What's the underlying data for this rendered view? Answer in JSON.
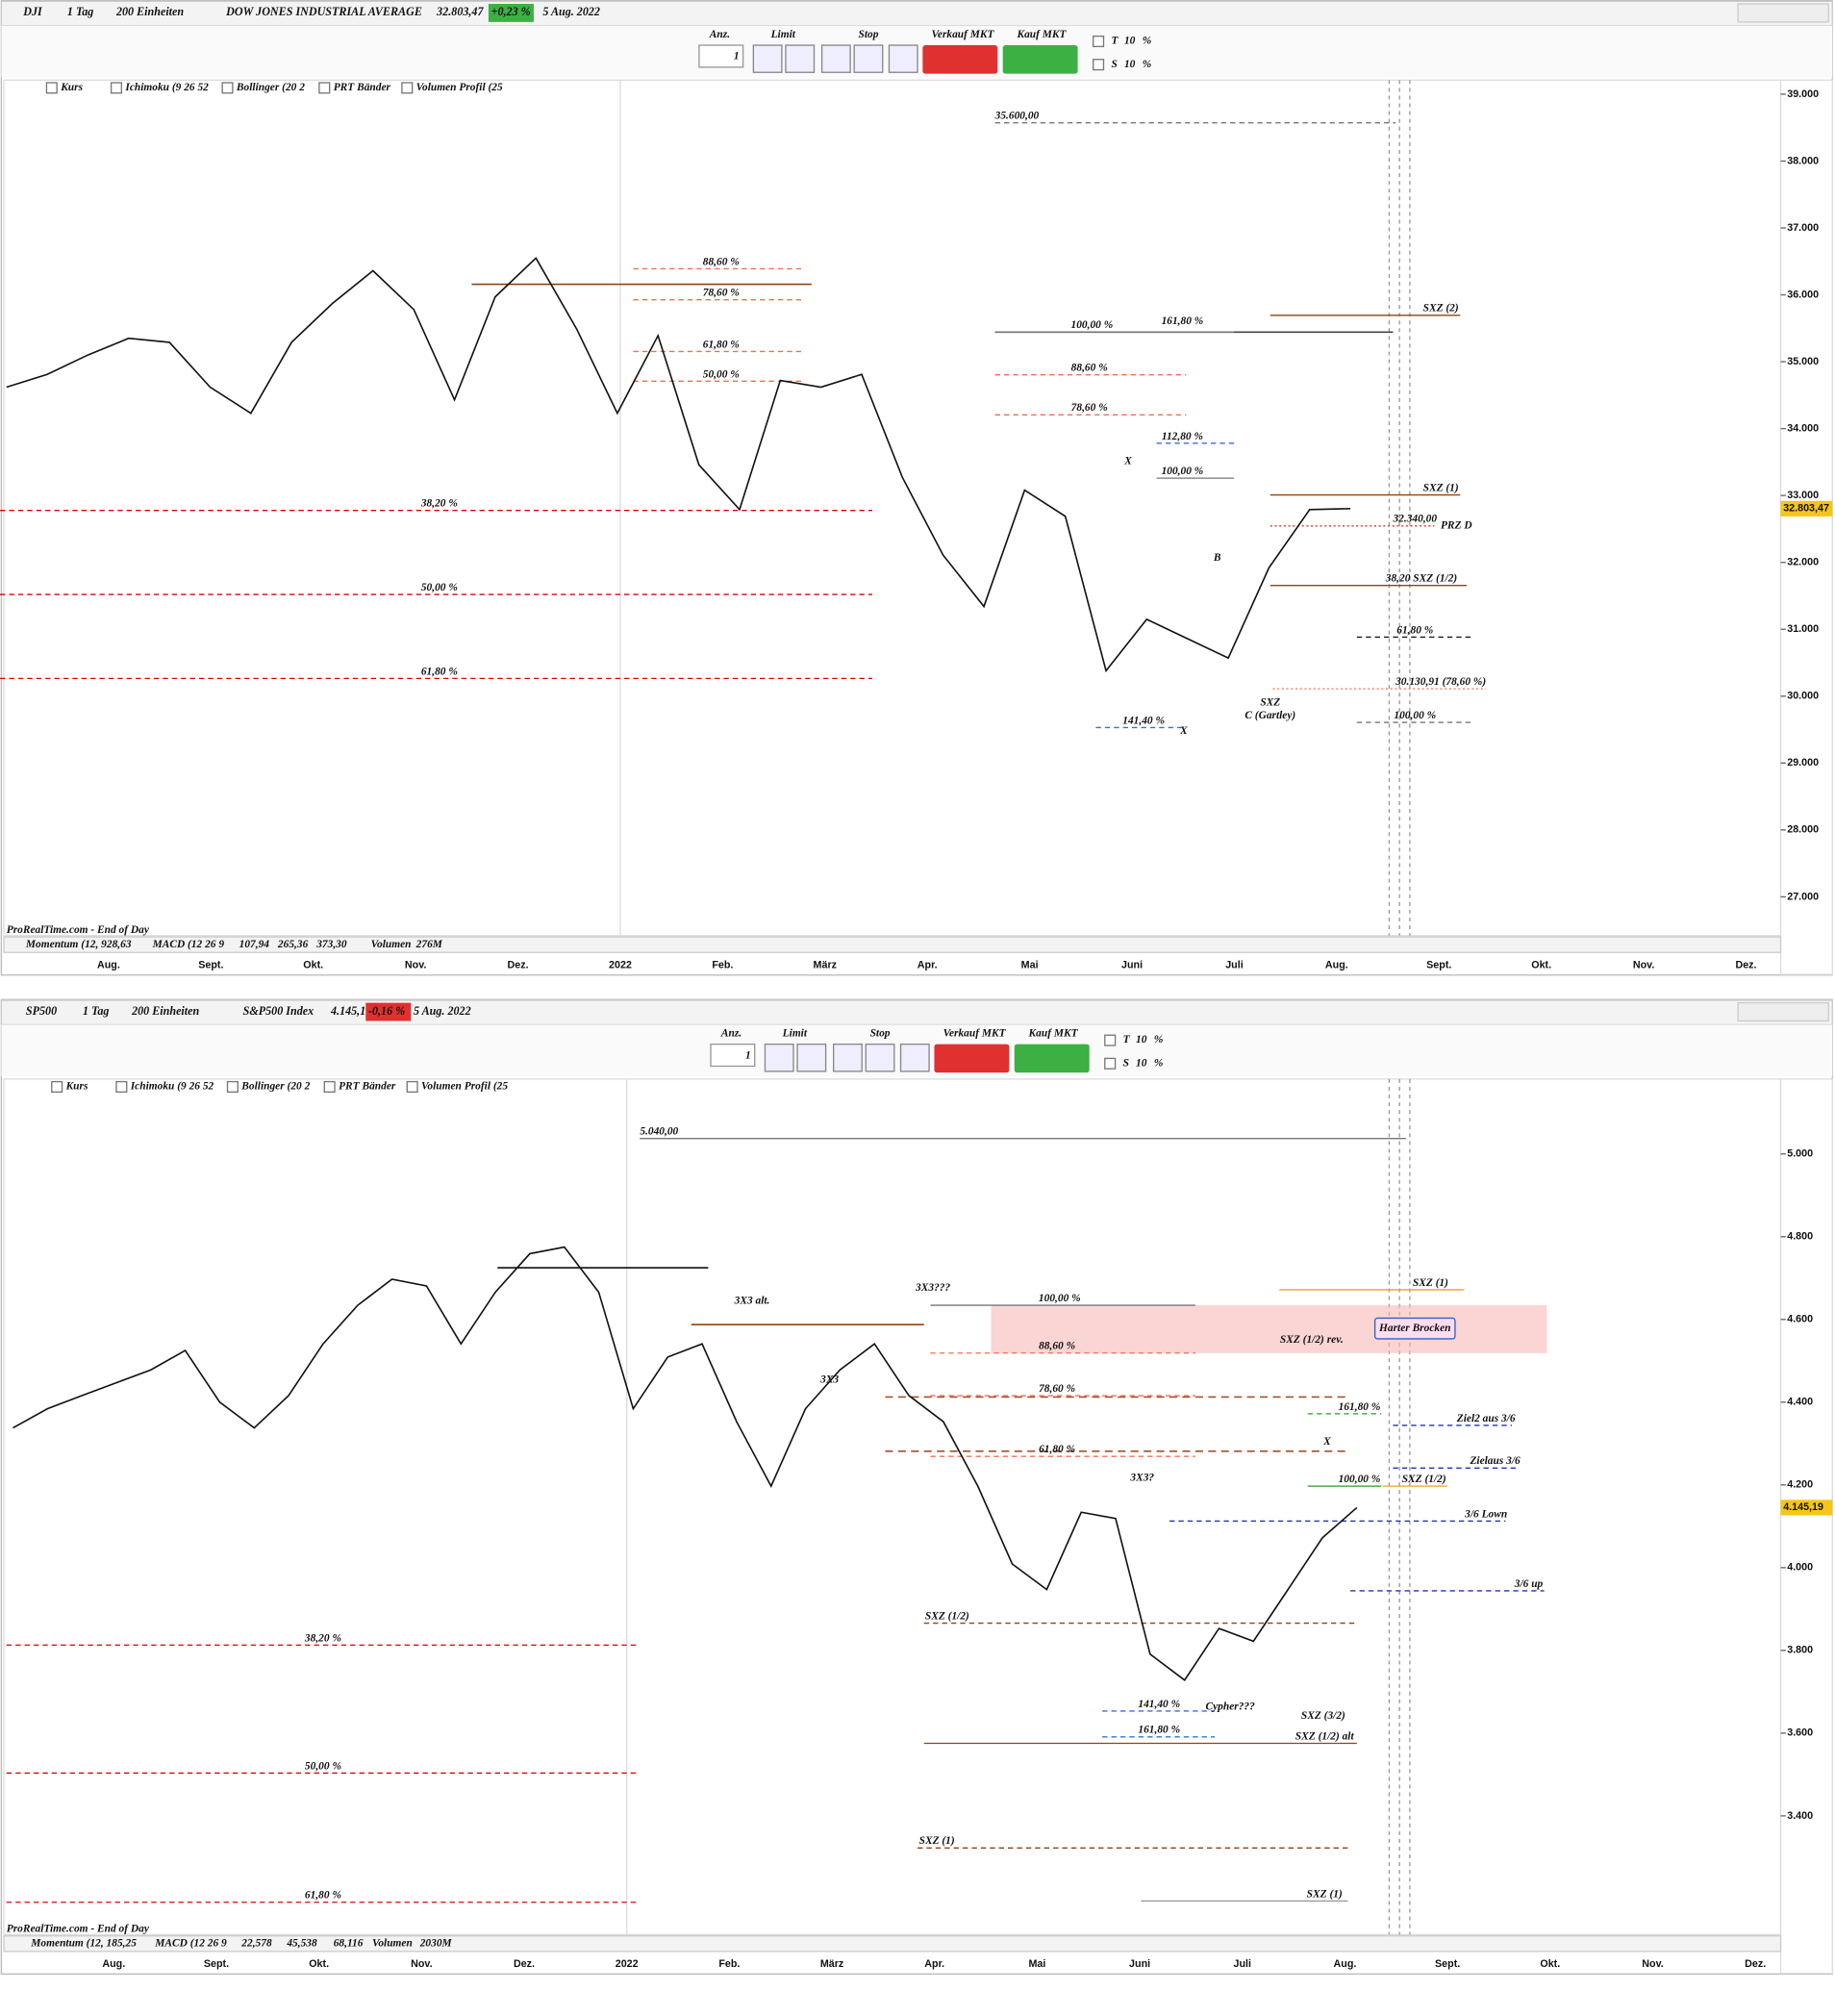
{
  "panels": [
    {
      "symbol": "DJI",
      "interval": "1 Tag",
      "units": "200 Einheiten",
      "name": "DOW JONES INDUSTRIAL AVERAGE",
      "last": "32.803,47",
      "change": "+0,23 %",
      "change_color": "#3cb043",
      "date": "5 Aug. 2022",
      "order": {
        "qty_label": "Anz.",
        "qty": "1",
        "limit": "Limit",
        "stop": "Stop",
        "sell": "Verkauf MKT",
        "buy": "Kauf MKT",
        "t": "T",
        "s": "S",
        "pct_value": "10",
        "pct": "%"
      },
      "indicators": [
        "Kurs",
        "Ichimoku (9 26 52",
        "Bollinger (20 2",
        "PRT Bänder",
        "Volumen Profil (25"
      ],
      "footer": {
        "source": "ProRealTime.com - End of Day",
        "momentum": "Momentum (12, 928,63",
        "macd": "MACD (12 26 9",
        "macd_values": [
          "107,94",
          "265,36",
          "373,30"
        ],
        "macd_colors": [
          "#2a9d2a",
          "#d03030",
          "#2040c0"
        ],
        "volume": "Volumen",
        "volume_value": "276M"
      },
      "chart": {
        "type": "line",
        "color": "#111111",
        "ylim": [
          26420,
          39210
        ],
        "yticks": [
          {
            "value": 39000,
            "label": "39.000"
          },
          {
            "value": 38000,
            "label": "38.000"
          },
          {
            "value": 37000,
            "label": "37.000"
          },
          {
            "value": 36000,
            "label": "36.000"
          },
          {
            "value": 35000,
            "label": "35.000"
          },
          {
            "value": 34000,
            "label": "34.000"
          },
          {
            "value": 33000,
            "label": "33.000"
          },
          {
            "value": 32000,
            "label": "32.000"
          },
          {
            "value": 31000,
            "label": "31.000"
          },
          {
            "value": 30000,
            "label": "30.000"
          },
          {
            "value": 29000,
            "label": "29.000"
          },
          {
            "value": 28000,
            "label": "28.000"
          },
          {
            "value": 27000,
            "label": "27.000"
          }
        ],
        "categories": [
          "Aug.",
          "Sept.",
          "Okt.",
          "Nov.",
          "Dez.",
          "2022",
          "Feb.",
          "März",
          "Apr.",
          "Mai",
          "Juni",
          "Juli",
          "Aug.",
          "Sept.",
          "Okt.",
          "Nov.",
          "Dez."
        ],
        "values": [
          34620,
          34810,
          35100,
          35350,
          35290,
          34620,
          34230,
          35290,
          35870,
          36360,
          35780,
          34430,
          35970,
          36550,
          35490,
          34230,
          35390,
          33460,
          32790,
          34720,
          34620,
          34810,
          33270,
          32110,
          31340,
          33080,
          32690,
          30380,
          31150,
          30860,
          30570,
          31920,
          32790,
          32803.47
        ],
        "last_value": 32803.47,
        "last_label": "32.803,47"
      },
      "annotations": [
        {
          "text": "38,20 %",
          "color": "#e00000"
        },
        {
          "text": "50,00 %",
          "color": "#e00000"
        },
        {
          "text": "61,80 %",
          "color": "#e00000"
        },
        {
          "text": "SXZ (2)",
          "color": "#8b4513"
        },
        {
          "text": "SXZ (1)",
          "color": "#8b4513"
        },
        {
          "text": "38,20 SXZ (1/2)",
          "color": "#8b4513"
        },
        {
          "text": "61,80 %",
          "color": "#111111"
        },
        {
          "text": "32.340,00",
          "color": "#e03030"
        },
        {
          "text": "PRZ D",
          "color": "#333333"
        },
        {
          "text": "100,00 %",
          "color": "#777777"
        },
        {
          "text": "161,80 %",
          "color": "#3070e0"
        },
        {
          "text": "88,60 %",
          "color": "#f07050"
        },
        {
          "text": "78,60 %",
          "color": "#f07050"
        },
        {
          "text": "112,80 %",
          "color": "#3070e0"
        },
        {
          "text": "100,00 %",
          "color": "#777777"
        },
        {
          "text": "35.600,00",
          "color": "#777777"
        },
        {
          "text": "141,40 %",
          "color": "#3070e0"
        },
        {
          "text": "100,00 %",
          "color": "#777777"
        },
        {
          "text": "30.130,91 (78,60 %)",
          "color": "#f07050"
        },
        {
          "text": "88,60 %",
          "color": "#f07050"
        },
        {
          "text": "78,60 %",
          "color": "#f07050"
        },
        {
          "text": "61,80 %",
          "color": "#f07050"
        },
        {
          "text": "50,00 %",
          "color": "#f07050"
        },
        {
          "text": "X",
          "color": "#333333"
        },
        {
          "text": "B",
          "color": "#333333"
        },
        {
          "text": "X",
          "color": "#333333"
        },
        {
          "text": "SXZ",
          "color": "#8b4513"
        },
        {
          "text": "C (Gartley)",
          "color": "#333333"
        }
      ]
    },
    {
      "symbol": "SP500",
      "interval": "1 Tag",
      "units": "200 Einheiten",
      "name": "S&P500 Index",
      "last": "4.145,19",
      "change": "-0,16 %",
      "change_color": "#e03030",
      "date": "5 Aug. 2022",
      "order": {
        "qty_label": "Anz.",
        "qty": "1",
        "limit": "Limit",
        "stop": "Stop",
        "sell": "Verkauf MKT",
        "buy": "Kauf MKT",
        "t": "T",
        "s": "S",
        "pct_value": "10",
        "pct": "%"
      },
      "indicators": [
        "Kurs",
        "Ichimoku (9 26 52",
        "Bollinger (20 2",
        "PRT Bänder",
        "Volumen Profil (25"
      ],
      "footer": {
        "source": "ProRealTime.com - End of Day",
        "momentum": "Momentum (12, 185,25",
        "macd": "MACD (12 26 9",
        "macd_values": [
          "22,578",
          "45,538",
          "68,116"
        ],
        "macd_colors": [
          "#2a9d2a",
          "#d03030",
          "#2040c0"
        ],
        "volume": "Volumen",
        "volume_value": "2030M"
      },
      "chart": {
        "type": "line",
        "color": "#111111",
        "ylim": [
          3113,
          5181
        ],
        "yticks": [
          {
            "value": 5000,
            "label": "5.000"
          },
          {
            "value": 4800,
            "label": "4.800"
          },
          {
            "value": 4600,
            "label": "4.600"
          },
          {
            "value": 4400,
            "label": "4.400"
          },
          {
            "value": 4200,
            "label": "4.200"
          },
          {
            "value": 4000,
            "label": "4.000"
          },
          {
            "value": 3800,
            "label": "3.800"
          },
          {
            "value": 3600,
            "label": "3.600"
          },
          {
            "value": 3400,
            "label": "3.400"
          }
        ],
        "categories": [
          "Aug.",
          "Sept.",
          "Okt.",
          "Nov.",
          "Dez.",
          "2022",
          "Feb.",
          "März",
          "Apr.",
          "Mai",
          "Juni",
          "Juli",
          "Aug.",
          "Sept.",
          "Okt.",
          "Nov.",
          "Dez."
        ],
        "values": [
          4338,
          4384,
          4416,
          4447,
          4478,
          4525,
          4400,
          4338,
          4416,
          4541,
          4634,
          4697,
          4681,
          4541,
          4666,
          4759,
          4775,
          4666,
          4384,
          4509,
          4541,
          4353,
          4197,
          4384,
          4478,
          4541,
          4416,
          4353,
          4197,
          4009,
          3947,
          4134,
          4119,
          3791,
          3728,
          3853,
          3822,
          3947,
          4072,
          4145.19
        ],
        "last_value": 4145.19,
        "last_label": "4.145,19"
      },
      "annotations": [
        {
          "text": "38,20 %",
          "color": "#e00000"
        },
        {
          "text": "50,00 %",
          "color": "#e00000"
        },
        {
          "text": "61,80 %",
          "color": "#e00000"
        },
        {
          "text": "5.040,00",
          "color": "#777777"
        },
        {
          "text": "SXZ (1)",
          "color": "#f0a020"
        },
        {
          "text": "SXZ (1/2) rev.",
          "color": "#999999"
        },
        {
          "text": "100,00 %",
          "color": "#777777"
        },
        {
          "text": "88,60 %",
          "color": "#f07050"
        },
        {
          "text": "78,60 %",
          "color": "#f07050"
        },
        {
          "text": "61,80 %",
          "color": "#f07050"
        },
        {
          "text": "161,80 %",
          "color": "#2a9d2a"
        },
        {
          "text": "100,00 %",
          "color": "#2a9d2a"
        },
        {
          "text": "SXZ (1/2)",
          "color": "#f0a020"
        },
        {
          "text": "Ziel2 aus 3/6",
          "color": "#2030c0"
        },
        {
          "text": "Zielaus 3/6",
          "color": "#2030c0"
        },
        {
          "text": "3/6 Lown",
          "color": "#2030c0"
        },
        {
          "text": "3/6 up",
          "color": "#2030c0"
        },
        {
          "text": "SXZ (1/2)",
          "color": "#8b4513"
        },
        {
          "text": "141,40 %",
          "color": "#3070e0"
        },
        {
          "text": "161,80 %",
          "color": "#3070e0"
        },
        {
          "text": "SXZ (1/2) alt",
          "color": "#8b4513"
        },
        {
          "text": "SXZ (3/2)",
          "color": "#999999"
        },
        {
          "text": "SXZ (1)",
          "color": "#8b4513"
        },
        {
          "text": "SXZ (1)",
          "color": "#999999"
        },
        {
          "text": "3X3 alt.",
          "color": "#8b4513"
        },
        {
          "text": "3X3???",
          "color": "#8b4513"
        },
        {
          "text": "3X3",
          "color": "#8b4513"
        },
        {
          "text": "3X3?",
          "color": "#999999"
        },
        {
          "text": "Cypher???",
          "color": "#333333"
        },
        {
          "text": "X",
          "color": "#8b4513"
        },
        {
          "text": "Harter Brocken",
          "color": "#333333"
        }
      ]
    }
  ]
}
